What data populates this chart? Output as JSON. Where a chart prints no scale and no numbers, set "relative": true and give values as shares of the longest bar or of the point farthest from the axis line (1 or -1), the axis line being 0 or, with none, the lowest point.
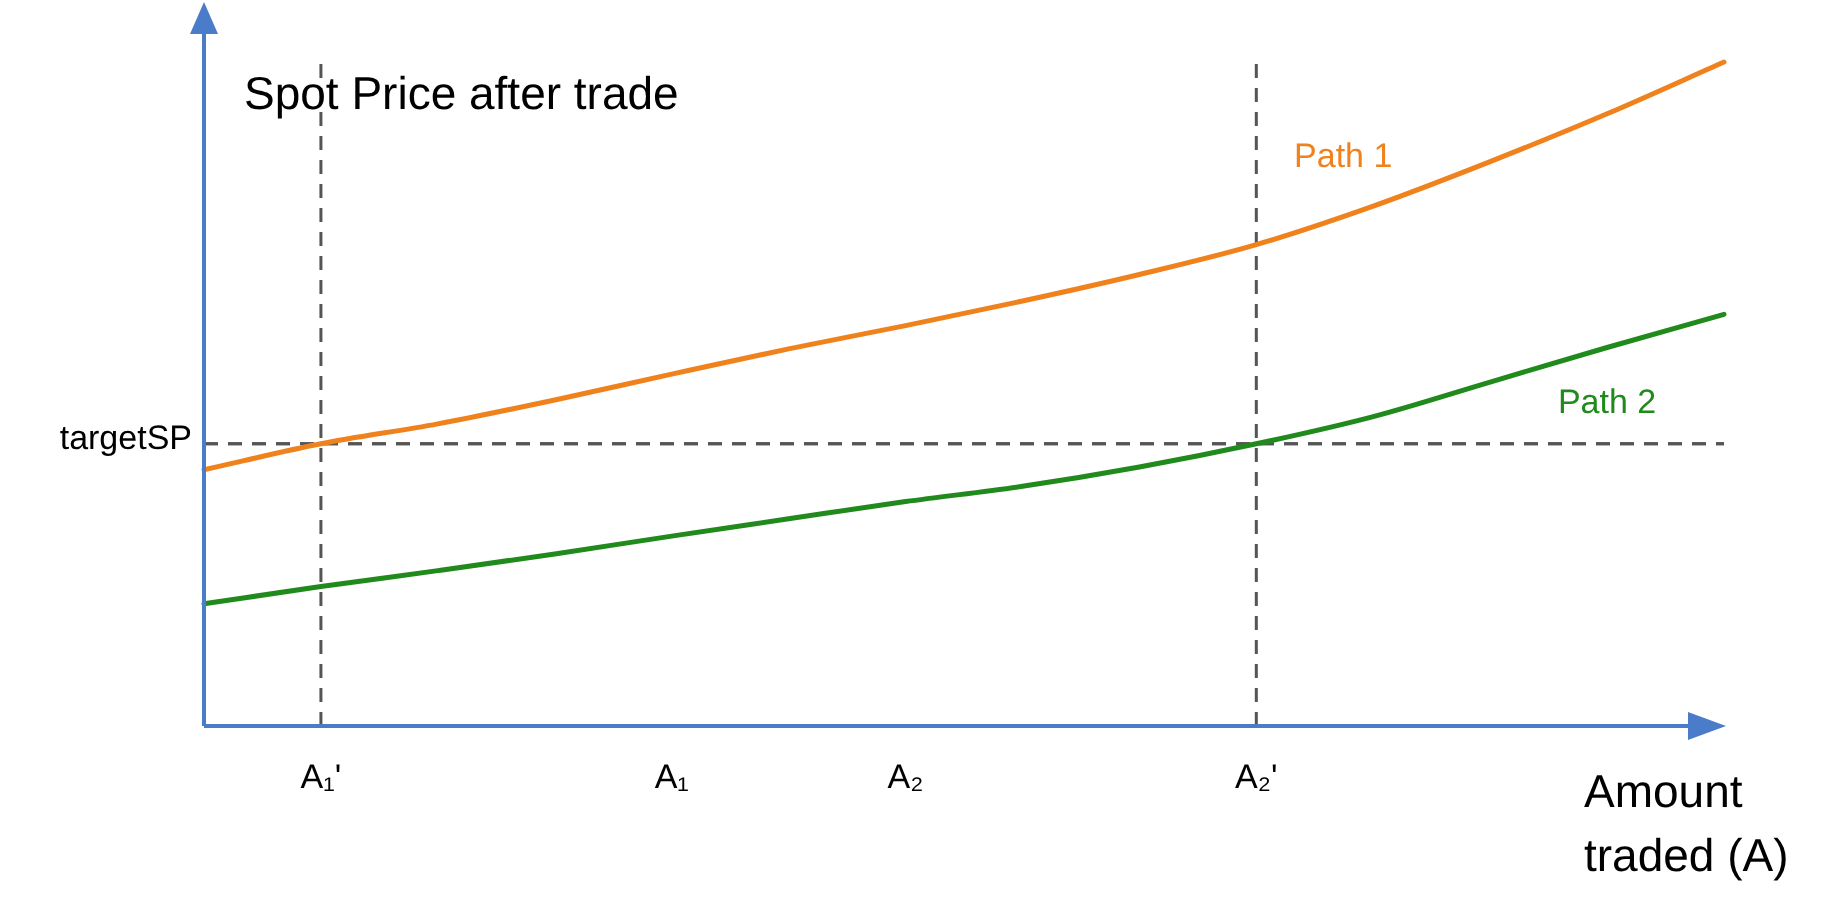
{
  "chart_data": {
    "type": "line",
    "relative": true,
    "ylabel": "Spot Price after trade",
    "xlabel": "Amount traded (A)",
    "categories": [
      null,
      "A₁'",
      null,
      null,
      "A₁",
      null,
      "A₂",
      null,
      null,
      "A₂'",
      null,
      null,
      null,
      null
    ],
    "series": [
      {
        "name": "Path 1",
        "color": "#f0821e",
        "values": [
          0.386,
          0.425,
          0.455,
          0.491,
          0.53,
          0.568,
          0.603,
          0.64,
          0.68,
          0.725,
          0.783,
          0.85,
          0.922,
          1
        ]
      },
      {
        "name": "Path 2",
        "color": "#218a1c",
        "values": [
          0.184,
          0.21,
          0.234,
          0.259,
          0.286,
          0.312,
          0.338,
          0.361,
          0.39,
          0.425,
          0.466,
          0.518,
          0.57,
          0.62
        ]
      }
    ],
    "ref_lines": [
      {
        "axis": "y",
        "value": 0.425,
        "label": "targetSP",
        "color": "#555555",
        "line_style": "dashed"
      },
      {
        "axis": "x",
        "value": "A₁'",
        "color": "#555555",
        "line_style": "dashed"
      },
      {
        "axis": "x",
        "value": "A₂'",
        "color": "#555555",
        "line_style": "dashed"
      }
    ],
    "grid": false,
    "legend": false,
    "marker": "none",
    "line_style": "solid"
  }
}
